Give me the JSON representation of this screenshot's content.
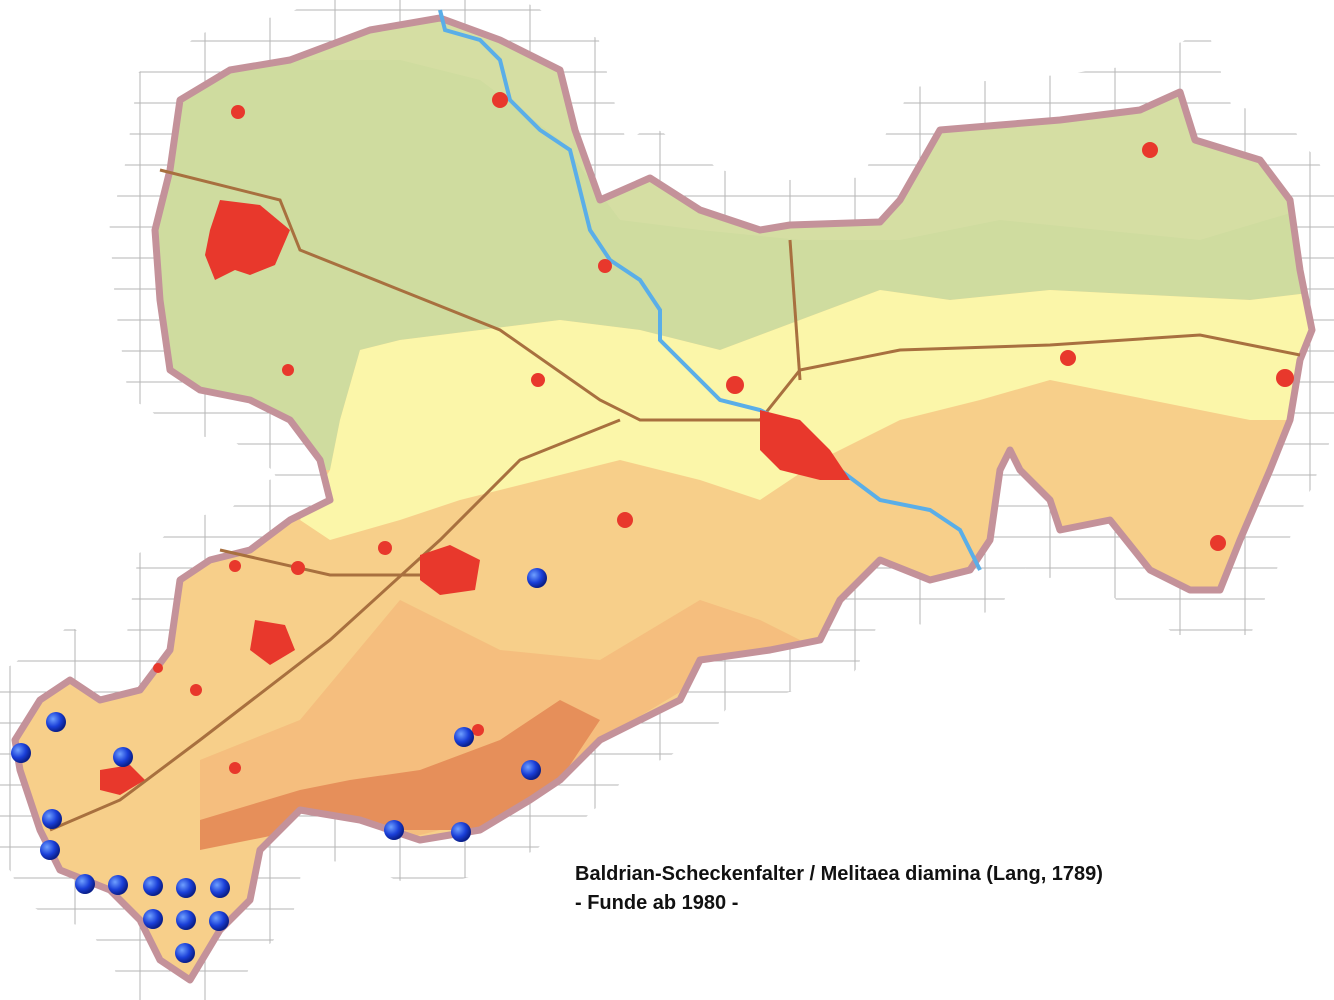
{
  "title": "Baldrian-Scheckenfalter / Melitaea diamina (Lang, 1789)",
  "subtitle": "- Funde ab 1980 -"
}
